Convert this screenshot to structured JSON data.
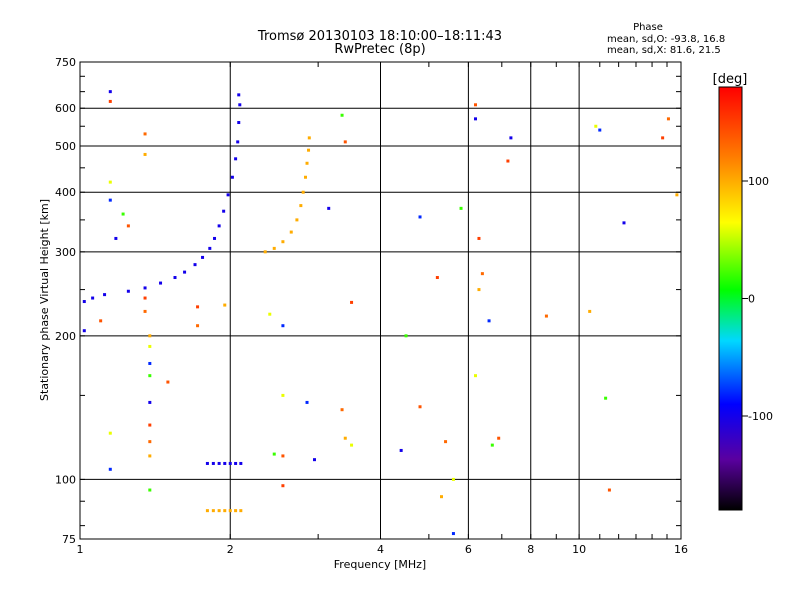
{
  "chart_data": {
    "type": "scatter",
    "title": "Tromsø 20130103 18:10:00–18:11:43",
    "subtitle": "RwPretec (8p)",
    "xlabel": "Frequency [MHz]",
    "ylabel": "Stationary phase Virtual Height [km]",
    "xscale": "log",
    "yscale": "log",
    "xlim": [
      1,
      16
    ],
    "ylim": [
      75,
      750
    ],
    "x_ticks": [
      1,
      2,
      4,
      6,
      8,
      10,
      16
    ],
    "x_tick_labels": [
      "1",
      "2",
      "4",
      "6",
      "8",
      "10",
      "16"
    ],
    "x_gridlines": [
      2,
      4,
      6,
      8,
      10
    ],
    "y_ticks": [
      75,
      100,
      200,
      300,
      400,
      500,
      600,
      750
    ],
    "y_tick_labels": [
      "75",
      "100",
      "200",
      "300",
      "400",
      "500",
      "600",
      "750"
    ],
    "y_gridlines": [
      100,
      200,
      300,
      400,
      500,
      600
    ],
    "grid": true,
    "legend_position": "top-right",
    "phase_stats": {
      "heading": "Phase",
      "line_o": "mean, sd,O: -93.8, 16.8",
      "line_x": "mean, sd,X: 81.6, 21.5"
    },
    "colorbar": {
      "label": "[deg]",
      "range": [
        -180,
        180
      ],
      "ticks": [
        100,
        0,
        -100
      ],
      "tick_labels": [
        "100",
        "0",
        "-100"
      ]
    },
    "series": [
      {
        "trace": "O-mode F-layer trace",
        "phase_deg": -100,
        "points": [
          [
            1.02,
            236
          ],
          [
            1.06,
            240
          ],
          [
            1.12,
            244
          ],
          [
            1.25,
            248
          ],
          [
            1.35,
            252
          ],
          [
            1.45,
            258
          ],
          [
            1.55,
            265
          ],
          [
            1.62,
            272
          ],
          [
            1.7,
            282
          ],
          [
            1.76,
            292
          ],
          [
            1.82,
            305
          ],
          [
            1.86,
            320
          ],
          [
            1.9,
            340
          ],
          [
            1.94,
            365
          ],
          [
            1.98,
            395
          ],
          [
            2.02,
            430
          ],
          [
            2.05,
            470
          ],
          [
            2.07,
            510
          ],
          [
            2.08,
            560
          ],
          [
            2.09,
            610
          ],
          [
            2.08,
            640
          ]
        ]
      },
      {
        "trace": "X-mode F-layer trace",
        "phase_deg": 100,
        "points": [
          [
            2.35,
            300
          ],
          [
            2.45,
            305
          ],
          [
            2.55,
            315
          ],
          [
            2.65,
            330
          ],
          [
            2.72,
            350
          ],
          [
            2.77,
            375
          ],
          [
            2.8,
            400
          ],
          [
            2.83,
            430
          ],
          [
            2.85,
            460
          ],
          [
            2.87,
            490
          ],
          [
            2.88,
            520
          ]
        ]
      },
      {
        "trace": "O-mode E-layer trace",
        "phase_deg": -100,
        "points": [
          [
            1.8,
            108
          ],
          [
            1.85,
            108
          ],
          [
            1.9,
            108
          ],
          [
            1.95,
            108
          ],
          [
            2.0,
            108
          ],
          [
            2.05,
            108
          ],
          [
            2.1,
            108
          ]
        ]
      },
      {
        "trace": "X-mode E-layer trace",
        "phase_deg": 100,
        "points": [
          [
            1.8,
            86
          ],
          [
            1.85,
            86
          ],
          [
            1.9,
            86
          ],
          [
            1.95,
            86
          ],
          [
            2.0,
            86
          ],
          [
            2.05,
            86
          ],
          [
            2.1,
            86
          ]
        ]
      },
      {
        "trace": "scattered echoes",
        "points": [
          [
            1.15,
            650
          ],
          [
            1.15,
            620
          ],
          [
            1.35,
            530
          ],
          [
            1.35,
            480
          ],
          [
            1.15,
            420
          ],
          [
            1.15,
            385
          ],
          [
            1.22,
            360
          ],
          [
            1.25,
            340
          ],
          [
            1.18,
            320
          ],
          [
            1.35,
            240
          ],
          [
            1.35,
            225
          ],
          [
            1.38,
            200
          ],
          [
            1.38,
            190
          ],
          [
            1.38,
            175
          ],
          [
            1.38,
            165
          ],
          [
            1.5,
            160
          ],
          [
            1.38,
            145
          ],
          [
            1.38,
            130
          ],
          [
            1.38,
            120
          ],
          [
            1.38,
            112
          ],
          [
            1.15,
            125
          ],
          [
            1.15,
            105
          ],
          [
            1.38,
            95
          ],
          [
            1.1,
            215
          ],
          [
            1.02,
            205
          ],
          [
            1.72,
            230
          ],
          [
            1.72,
            210
          ],
          [
            1.95,
            232
          ],
          [
            2.4,
            222
          ],
          [
            2.55,
            210
          ],
          [
            3.35,
            580
          ],
          [
            3.4,
            510
          ],
          [
            3.15,
            370
          ],
          [
            3.5,
            235
          ],
          [
            3.35,
            140
          ],
          [
            3.4,
            122
          ],
          [
            3.5,
            118
          ],
          [
            4.8,
            355
          ],
          [
            4.5,
            200
          ],
          [
            4.8,
            142
          ],
          [
            4.4,
            115
          ],
          [
            5.2,
            265
          ],
          [
            5.4,
            120
          ],
          [
            5.3,
            92
          ],
          [
            5.6,
            100
          ],
          [
            5.6,
            77
          ],
          [
            5.8,
            370
          ],
          [
            6.2,
            610
          ],
          [
            6.2,
            570
          ],
          [
            6.3,
            320
          ],
          [
            6.4,
            270
          ],
          [
            6.3,
            250
          ],
          [
            6.2,
            165
          ],
          [
            6.6,
            215
          ],
          [
            6.7,
            118
          ],
          [
            6.9,
            122
          ],
          [
            7.3,
            520
          ],
          [
            7.2,
            465
          ],
          [
            8.6,
            220
          ],
          [
            10.5,
            225
          ],
          [
            10.8,
            550
          ],
          [
            11,
            540
          ],
          [
            11.3,
            148
          ],
          [
            11.5,
            95
          ],
          [
            12.3,
            345
          ],
          [
            14.7,
            520
          ],
          [
            15.1,
            570
          ],
          [
            15.7,
            395
          ],
          [
            2.55,
            150
          ],
          [
            2.85,
            145
          ],
          [
            2.45,
            113
          ],
          [
            2.55,
            112
          ],
          [
            2.95,
            110
          ],
          [
            2.55,
            97
          ]
        ]
      }
    ]
  }
}
